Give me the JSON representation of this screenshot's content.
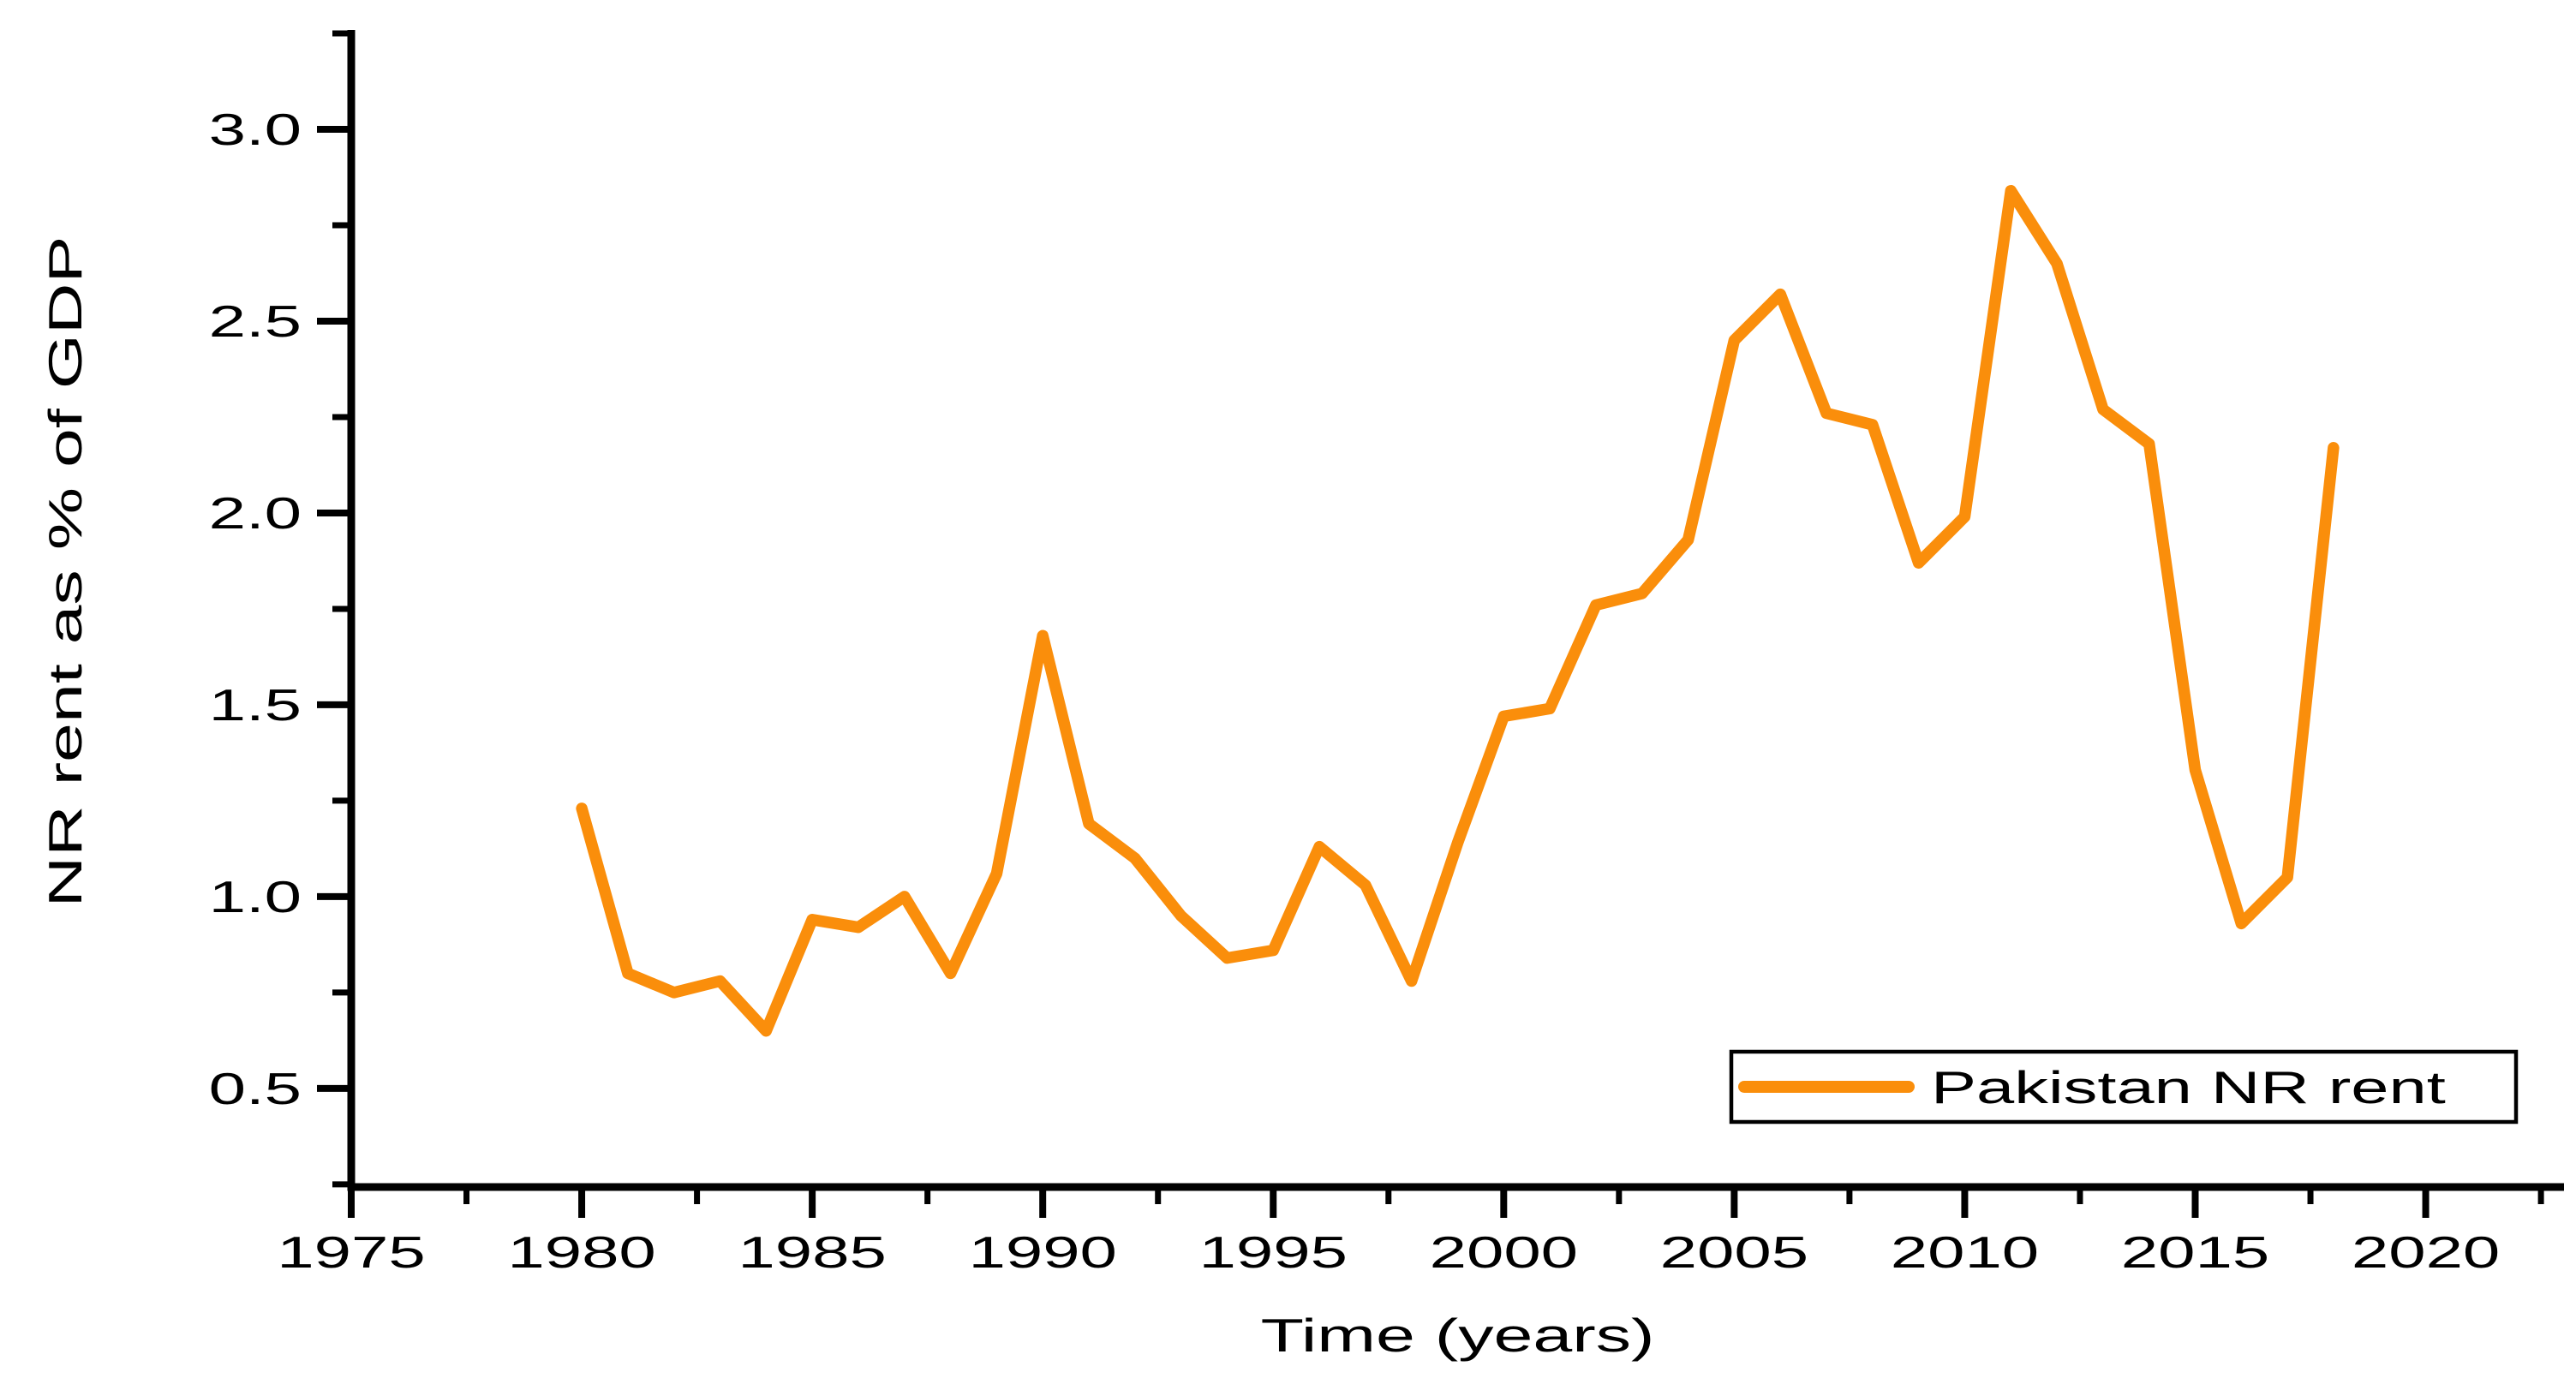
{
  "chart_data": {
    "type": "line",
    "title": "",
    "xlabel": "Time (years)",
    "ylabel": "NR rent as % of GDP",
    "x": [
      1980,
      1981,
      1982,
      1983,
      1984,
      1985,
      1986,
      1987,
      1988,
      1989,
      1990,
      1991,
      1992,
      1993,
      1994,
      1995,
      1996,
      1997,
      1998,
      1999,
      2000,
      2001,
      2002,
      2003,
      2004,
      2005,
      2006,
      2007,
      2008,
      2009,
      2010,
      2011,
      2012,
      2013,
      2014,
      2015,
      2016,
      2017,
      2018
    ],
    "series": [
      {
        "name": "Pakistan NR rent",
        "color": "#FA8E0B",
        "values": [
          1.23,
          0.8,
          0.75,
          0.78,
          0.65,
          0.94,
          0.92,
          1.0,
          0.8,
          1.06,
          1.68,
          1.19,
          1.1,
          0.95,
          0.84,
          0.86,
          1.13,
          1.03,
          0.78,
          1.14,
          1.47,
          1.49,
          1.76,
          1.79,
          1.93,
          2.45,
          2.57,
          2.26,
          2.23,
          1.87,
          1.99,
          2.84,
          2.65,
          2.27,
          2.18,
          1.33,
          0.93,
          1.05,
          2.17
        ]
      }
    ],
    "xlim": [
      1975,
      2023
    ],
    "ylim": [
      0.243,
      3.259
    ],
    "grid": false,
    "legend_position": "bottom-right",
    "x_major_ticks": [
      1975,
      1980,
      1985,
      1990,
      1995,
      2000,
      2005,
      2010,
      2015,
      2020
    ],
    "x_minor_ticks": [
      1977.5,
      1982.5,
      1987.5,
      1992.5,
      1997.5,
      2002.5,
      2007.5,
      2012.5,
      2017.5,
      2022.5
    ],
    "y_major_ticks": [
      0.5,
      1.0,
      1.5,
      2.0,
      2.5,
      3.0
    ],
    "y_minor_ticks": [
      0.25,
      0.75,
      1.25,
      1.75,
      2.25,
      2.75,
      3.25
    ]
  },
  "axes": {
    "x_tick_labels": [
      "1975",
      "1980",
      "1985",
      "1990",
      "1995",
      "2000",
      "2005",
      "2010",
      "2015",
      "2020"
    ],
    "y_tick_labels": [
      "0.5",
      "1.0",
      "1.5",
      "2.0",
      "2.5",
      "3.0"
    ]
  },
  "legend": {
    "label": "Pakistan NR rent"
  },
  "style": {
    "line_color": "#FA8E0B",
    "axis_color": "#000000",
    "background": "#ffffff"
  }
}
